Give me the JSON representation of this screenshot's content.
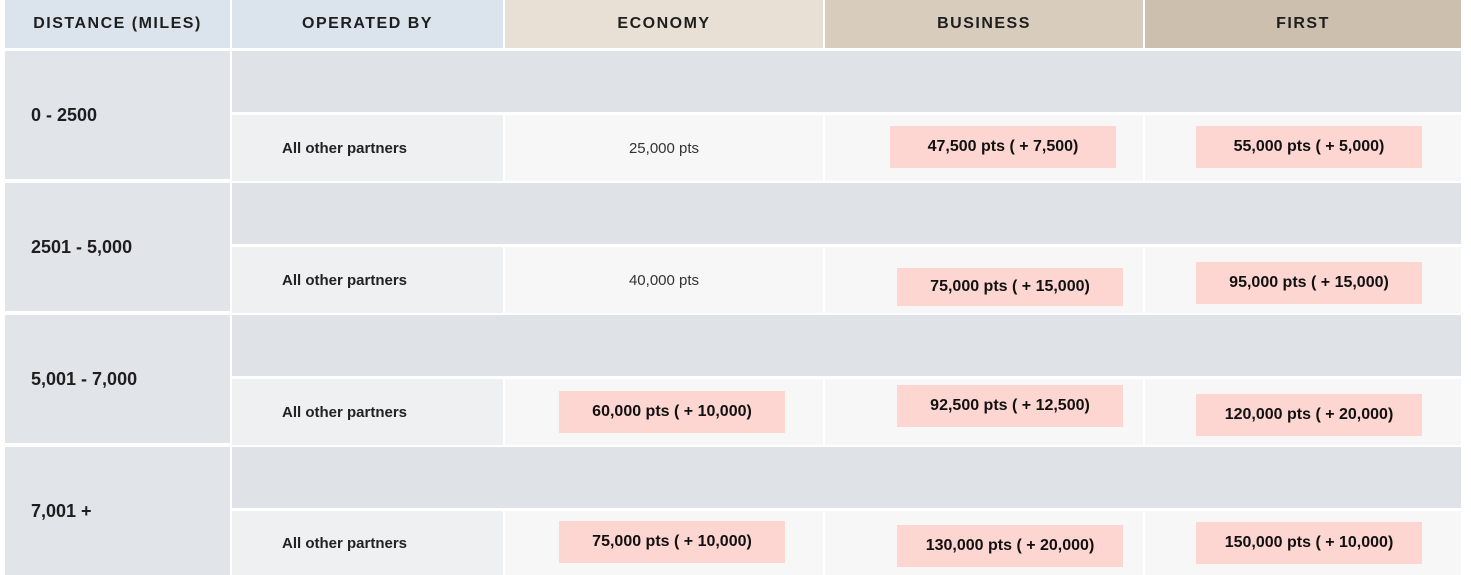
{
  "headers": {
    "distance": "DISTANCE (MILES)",
    "operated_by": "OPERATED BY",
    "economy": "ECONOMY",
    "business": "BUSINESS",
    "first": "FIRST"
  },
  "rows": [
    {
      "distance": "0 - 2500",
      "operated_by": "All other partners",
      "economy": "25,000 pts",
      "business": "47,500 pts ( + 7,500)",
      "first": "55,000 pts ( + 5,000)"
    },
    {
      "distance": "2501 - 5,000",
      "operated_by": "All other partners",
      "economy": "40,000 pts",
      "business": "75,000 pts ( + 15,000)",
      "first": "95,000 pts ( + 15,000)"
    },
    {
      "distance": "5,001 - 7,000",
      "operated_by": "All other partners",
      "economy": "60,000 pts ( + 10,000)",
      "business": "92,500 pts ( + 12,500)",
      "first": "120,000 pts ( + 20,000)"
    },
    {
      "distance": "7,001 +",
      "operated_by": "All other partners",
      "economy": "75,000 pts ( + 10,000)",
      "business": "130,000 pts ( + 20,000)",
      "first": "150,000 pts ( + 10,000)"
    }
  ]
}
